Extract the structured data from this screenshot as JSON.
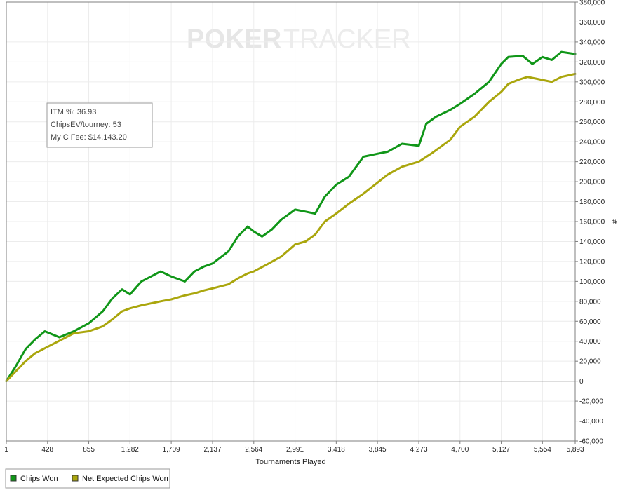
{
  "watermark": {
    "part1": "POKER",
    "part2": "TRACKER"
  },
  "stats_box": {
    "itm": "ITM %: 36.93",
    "chipsev": "ChipsEV/tourney: 53",
    "fee": "My C Fee: $14,143.20"
  },
  "chart_data": {
    "type": "line",
    "xlabel": "Tournaments Played",
    "ylabel": "#",
    "xlim": [
      1,
      5893
    ],
    "ylim": [
      -60000,
      380000
    ],
    "x_ticks": [
      1,
      428,
      855,
      1282,
      1709,
      2137,
      2564,
      2991,
      3418,
      3845,
      4273,
      4700,
      5127,
      5554,
      5893
    ],
    "x_tick_labels": [
      "1",
      "428",
      "855",
      "1,282",
      "1,709",
      "2,137",
      "2,564",
      "2,991",
      "3,418",
      "3,845",
      "4,273",
      "4,700",
      "5,127",
      "5,554",
      "5,893"
    ],
    "y_ticks": [
      -60000,
      -40000,
      -20000,
      0,
      20000,
      40000,
      60000,
      80000,
      100000,
      120000,
      140000,
      160000,
      180000,
      200000,
      220000,
      240000,
      260000,
      280000,
      300000,
      320000,
      340000,
      360000,
      380000
    ],
    "y_tick_labels": [
      "-60,000",
      "-40,000",
      "-20,000",
      "0",
      "20,000",
      "40,000",
      "60,000",
      "80,000",
      "100,000",
      "120,000",
      "140,000",
      "160,000",
      "180,000",
      "200,000",
      "220,000",
      "240,000",
      "260,000",
      "280,000",
      "300,000",
      "320,000",
      "340,000",
      "360,000",
      "380,000"
    ],
    "grid": true,
    "legend_position": "bottom-left",
    "series": [
      {
        "name": "Chips Won",
        "color": "#109618",
        "x": [
          1,
          100,
          200,
          300,
          400,
          450,
          550,
          700,
          855,
          1000,
          1100,
          1200,
          1282,
          1400,
          1500,
          1600,
          1709,
          1850,
          1950,
          2050,
          2137,
          2300,
          2400,
          2500,
          2564,
          2650,
          2750,
          2850,
          2991,
          3100,
          3200,
          3300,
          3418,
          3550,
          3700,
          3845,
          3950,
          4100,
          4273,
          4350,
          4450,
          4600,
          4700,
          4850,
          5000,
          5127,
          5200,
          5350,
          5450,
          5554,
          5650,
          5750,
          5893
        ],
        "y": [
          0,
          15000,
          32000,
          42000,
          50000,
          48000,
          44000,
          50000,
          58000,
          70000,
          83000,
          92000,
          87000,
          100000,
          105000,
          110000,
          105000,
          100000,
          110000,
          115000,
          118000,
          130000,
          145000,
          155000,
          150000,
          145000,
          152000,
          162000,
          172000,
          170000,
          168000,
          185000,
          197000,
          205000,
          225000,
          228000,
          230000,
          238000,
          236000,
          258000,
          265000,
          272000,
          278000,
          288000,
          300000,
          318000,
          325000,
          326000,
          318000,
          325000,
          322000,
          330000,
          328000
        ]
      },
      {
        "name": "Net Expected Chips Won",
        "color": "#aaa60d",
        "x": [
          1,
          100,
          200,
          300,
          400,
          500,
          600,
          700,
          855,
          1000,
          1100,
          1200,
          1282,
          1400,
          1500,
          1600,
          1709,
          1850,
          1950,
          2050,
          2137,
          2300,
          2400,
          2500,
          2564,
          2700,
          2850,
          2991,
          3100,
          3200,
          3300,
          3418,
          3550,
          3700,
          3845,
          3950,
          4100,
          4273,
          4400,
          4500,
          4600,
          4700,
          4850,
          5000,
          5127,
          5200,
          5300,
          5400,
          5554,
          5650,
          5750,
          5893
        ],
        "y": [
          0,
          10000,
          20000,
          28000,
          33000,
          38000,
          43000,
          48000,
          50000,
          55000,
          62000,
          70000,
          73000,
          76000,
          78000,
          80000,
          82000,
          86000,
          88000,
          91000,
          93000,
          97000,
          103000,
          108000,
          110000,
          117000,
          125000,
          137000,
          140000,
          147000,
          160000,
          168000,
          178000,
          188000,
          199000,
          207000,
          215000,
          220000,
          228000,
          235000,
          242000,
          255000,
          265000,
          280000,
          290000,
          298000,
          302000,
          305000,
          302000,
          300000,
          305000,
          308000
        ]
      }
    ]
  }
}
